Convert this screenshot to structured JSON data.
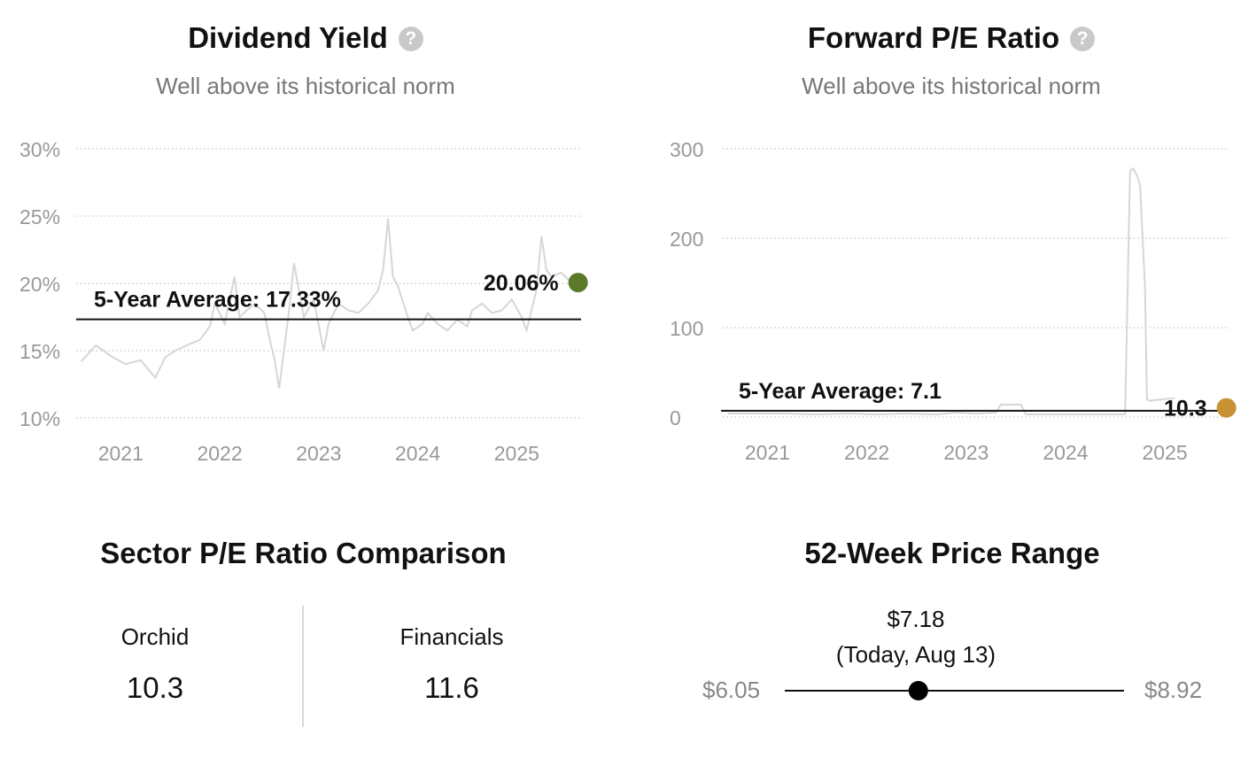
{
  "dividend_yield": {
    "title": "Dividend Yield",
    "subtitle": "Well above its historical norm",
    "help_icon": "question-circle-icon",
    "accent_color": "#5a7a2a",
    "chart_data": {
      "type": "line",
      "title": "Dividend Yield",
      "y_ticks": [
        "10%",
        "15%",
        "20%",
        "25%",
        "30%"
      ],
      "x_ticks": [
        "2021",
        "2022",
        "2023",
        "2024",
        "2025"
      ],
      "ylim": [
        10,
        30
      ],
      "xlim": [
        2020.55,
        2025.65
      ],
      "grid": true,
      "series": [
        {
          "x": [
            2020.6,
            2020.75,
            2020.9,
            2021.05,
            2021.2,
            2021.35,
            2021.45,
            2021.55,
            2021.7,
            2021.8,
            2021.9,
            2021.95,
            2022.05,
            2022.15,
            2022.2,
            2022.35,
            2022.45,
            2022.5,
            2022.55,
            2022.6,
            2022.65,
            2022.7,
            2022.75,
            2022.85,
            2022.95,
            2023.05,
            2023.1,
            2023.2,
            2023.3,
            2023.4,
            2023.5,
            2023.6,
            2023.65,
            2023.7,
            2023.75,
            2023.8,
            2023.9,
            2023.95,
            2024.05,
            2024.1,
            2024.2,
            2024.3,
            2024.4,
            2024.5,
            2024.55,
            2024.65,
            2024.75,
            2024.85,
            2024.95,
            2025.05,
            2025.1,
            2025.2,
            2025.25,
            2025.3,
            2025.35,
            2025.45,
            2025.55
          ],
          "values": [
            14.2,
            15.4,
            14.6,
            14.0,
            14.3,
            13.0,
            14.5,
            15.0,
            15.5,
            15.8,
            16.8,
            18.5,
            17.0,
            20.5,
            17.5,
            18.5,
            17.8,
            16.0,
            14.5,
            12.2,
            15.0,
            18.0,
            21.5,
            17.5,
            18.8,
            15.0,
            17.0,
            18.5,
            18.0,
            17.8,
            18.5,
            19.5,
            21.0,
            24.8,
            20.5,
            19.8,
            17.5,
            16.5,
            17.0,
            17.8,
            17.0,
            16.5,
            17.3,
            16.8,
            18.0,
            18.5,
            17.8,
            18.0,
            18.8,
            17.5,
            16.5,
            19.5,
            23.5,
            21.0,
            20.5,
            20.8,
            20.06
          ]
        }
      ],
      "average_label": "5-Year Average: 17.33%",
      "average_value": 17.33,
      "current_label": "20.06%",
      "current_value": 20.06,
      "current_x": 2025.62
    }
  },
  "forward_pe": {
    "title": "Forward P/E Ratio",
    "subtitle": "Well above its historical norm",
    "help_icon": "question-circle-icon",
    "accent_color": "#c89133",
    "chart_data": {
      "type": "line",
      "title": "Forward P/E Ratio",
      "y_ticks": [
        "0",
        "100",
        "200",
        "300"
      ],
      "x_ticks": [
        "2021",
        "2022",
        "2023",
        "2024",
        "2025"
      ],
      "ylim": [
        0,
        300
      ],
      "xlim": [
        2020.55,
        2025.65
      ],
      "grid": true,
      "series": [
        {
          "x": [
            2020.6,
            2020.9,
            2021.2,
            2021.5,
            2021.8,
            2022.1,
            2022.4,
            2022.7,
            2022.9,
            2023.1,
            2023.3,
            2023.35,
            2023.55,
            2023.6,
            2023.8,
            2024.1,
            2024.4,
            2024.6,
            2024.65,
            2024.68,
            2024.72,
            2024.75,
            2024.8,
            2024.82,
            2024.85,
            2024.9,
            2025.0,
            2025.1
          ],
          "values": [
            4,
            4,
            4,
            3,
            4,
            3,
            4,
            3,
            5,
            4,
            5,
            14,
            14,
            3,
            3,
            3,
            3,
            3,
            275,
            278,
            270,
            260,
            145,
            20,
            18,
            19,
            20,
            21
          ]
        }
      ],
      "average_label": "5-Year Average: 7.1",
      "average_value": 7.1,
      "current_label": "10.3",
      "current_value": 10.3,
      "current_x": 2025.62
    }
  },
  "sector_pe": {
    "title": "Sector P/E Ratio Comparison",
    "items": [
      {
        "label": "Orchid",
        "value": "10.3"
      },
      {
        "label": "Financials",
        "value": "11.6"
      }
    ]
  },
  "price_range": {
    "title": "52-Week Price Range",
    "current_price": "$7.18",
    "current_date": "(Today, Aug 13)",
    "low": "$6.05",
    "high": "$8.92",
    "low_value": 6.05,
    "high_value": 8.92,
    "current_value": 7.18
  }
}
